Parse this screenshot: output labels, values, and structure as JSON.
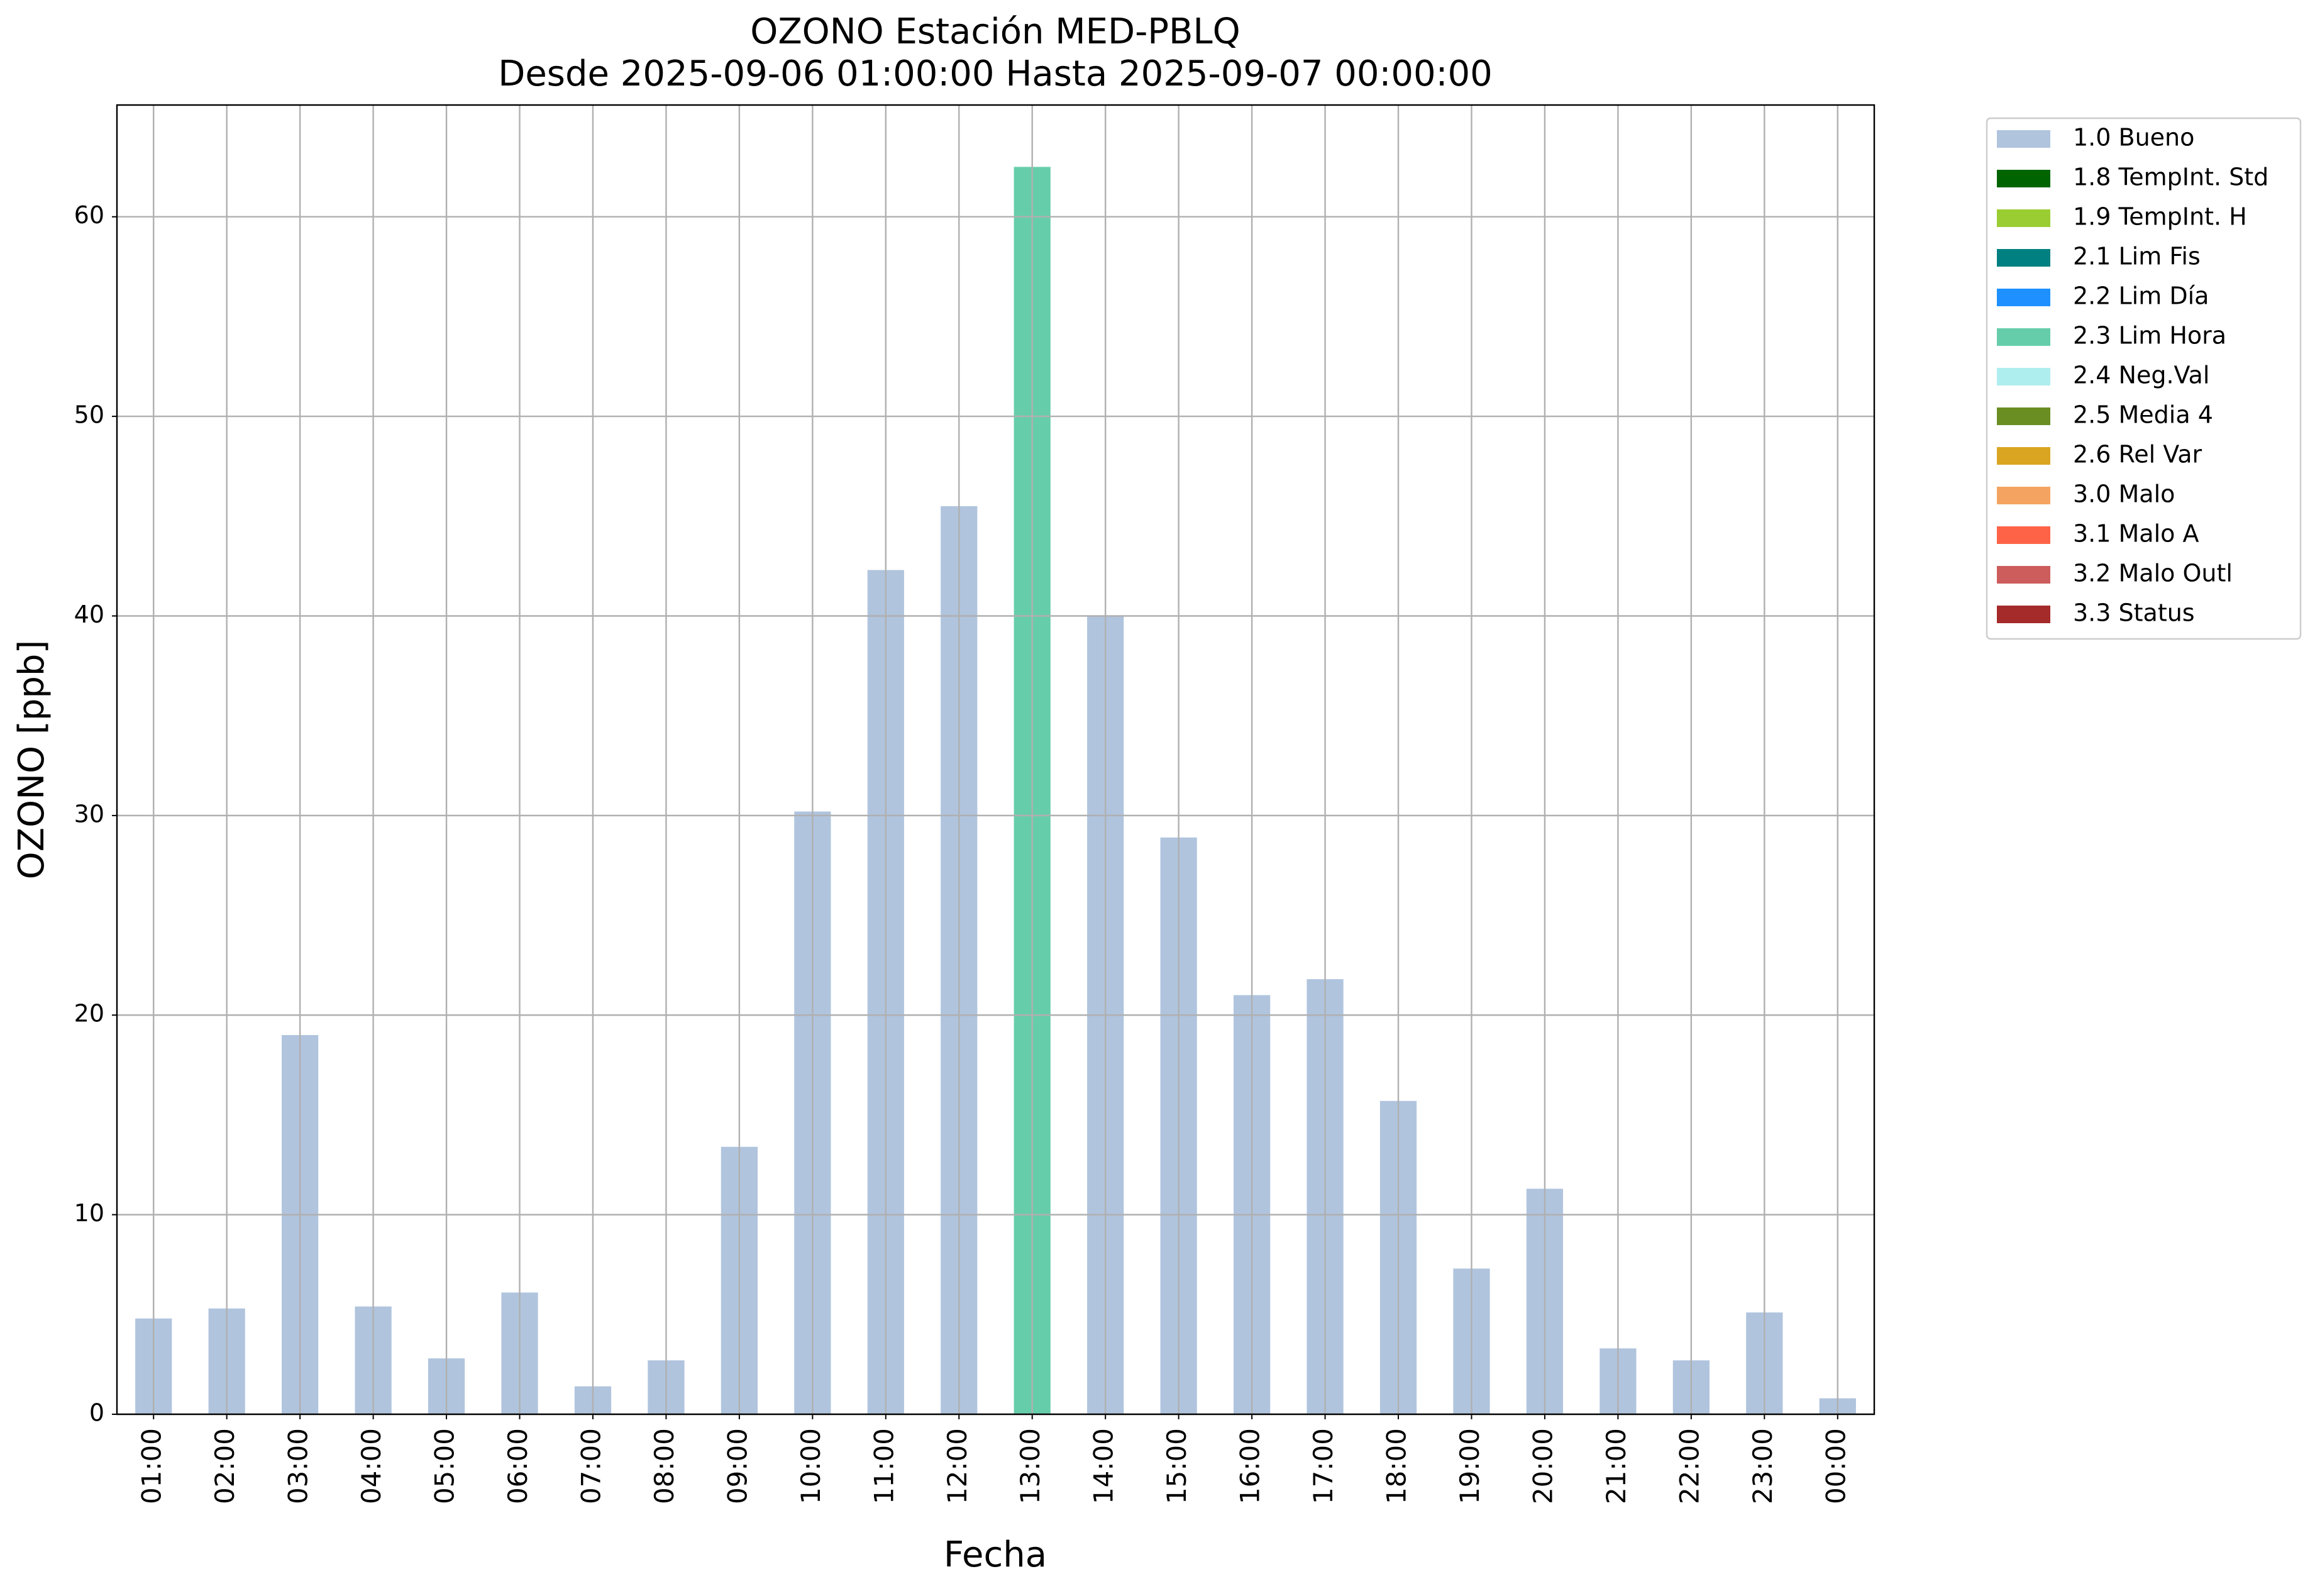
{
  "chart_data": {
    "type": "bar",
    "title": "OZONO Estación MED-PBLQ",
    "subtitle": "Desde 2025-09-06 01:00:00 Hasta 2025-09-07 00:00:00",
    "x_label": "Fecha",
    "y_label": "OZONO [ppb]",
    "categories": [
      "01:00",
      "02:00",
      "03:00",
      "04:00",
      "05:00",
      "06:00",
      "07:00",
      "08:00",
      "09:00",
      "10:00",
      "11:00",
      "12:00",
      "13:00",
      "14:00",
      "15:00",
      "16:00",
      "17:00",
      "18:00",
      "19:00",
      "20:00",
      "21:00",
      "22:00",
      "23:00",
      "00:00"
    ],
    "values": [
      4.8,
      5.3,
      19.0,
      5.4,
      2.8,
      6.1,
      1.4,
      2.7,
      13.4,
      30.2,
      42.3,
      45.5,
      62.5,
      40.0,
      28.9,
      21.0,
      21.8,
      15.7,
      7.3,
      11.3,
      3.3,
      2.7,
      5.1,
      0.8
    ],
    "colors": [
      "#b0c4de",
      "#b0c4de",
      "#b0c4de",
      "#b0c4de",
      "#b0c4de",
      "#b0c4de",
      "#b0c4de",
      "#b0c4de",
      "#b0c4de",
      "#b0c4de",
      "#b0c4de",
      "#b0c4de",
      "#66cdaa",
      "#b0c4de",
      "#b0c4de",
      "#b0c4de",
      "#b0c4de",
      "#b0c4de",
      "#b0c4de",
      "#b0c4de",
      "#b0c4de",
      "#b0c4de",
      "#b0c4de",
      "#b0c4de"
    ],
    "ylim": [
      0,
      65.6
    ],
    "yticks": [
      0,
      10,
      20,
      30,
      40,
      50,
      60
    ],
    "grid": true,
    "legend_position": "outside-right",
    "legend": [
      {
        "name": "1.0 Bueno",
        "color": "#b0c4de"
      },
      {
        "name": "1.8 TempInt. Std",
        "color": "#006400"
      },
      {
        "name": "1.9 TempInt. H",
        "color": "#9acd32"
      },
      {
        "name": "2.1 Lim Fis",
        "color": "#008080"
      },
      {
        "name": "2.2 Lim Día",
        "color": "#1e90ff"
      },
      {
        "name": "2.3 Lim Hora",
        "color": "#66cdaa"
      },
      {
        "name": "2.4 Neg.Val",
        "color": "#afeeee"
      },
      {
        "name": "2.5 Media 4",
        "color": "#6b8e23"
      },
      {
        "name": "2.6 Rel Var",
        "color": "#daa520"
      },
      {
        "name": "3.0 Malo",
        "color": "#f4a460"
      },
      {
        "name": "3.1 Malo A",
        "color": "#ff6347"
      },
      {
        "name": "3.2 Malo Outl",
        "color": "#cd5c5c"
      },
      {
        "name": "3.3 Status",
        "color": "#a52a2a"
      }
    ]
  }
}
